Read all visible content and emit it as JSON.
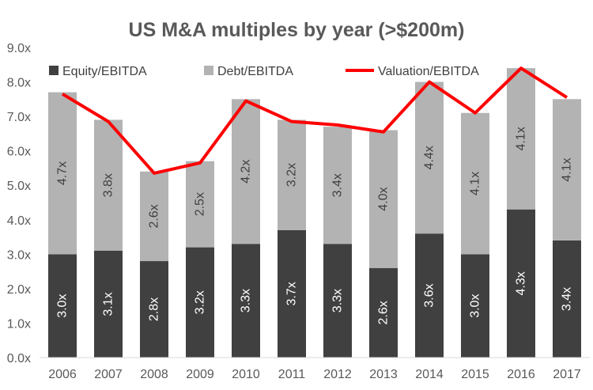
{
  "chart_data": {
    "type": "bar",
    "title": "US M&A multiples by year (>$200m)",
    "categories": [
      "2006",
      "2007",
      "2008",
      "2009",
      "2010",
      "2011",
      "2012",
      "2013",
      "2014",
      "2015",
      "2016",
      "2017"
    ],
    "series": [
      {
        "name": "Equity/EBITDA",
        "type": "bar",
        "color": "#404040",
        "values": [
          3.0,
          3.1,
          2.8,
          3.2,
          3.3,
          3.7,
          3.3,
          2.6,
          3.6,
          3.0,
          4.3,
          3.4
        ],
        "labels": [
          "3.0x",
          "3.1x",
          "2.8x",
          "3.2x",
          "3.3x",
          "3.7x",
          "3.3x",
          "2.6x",
          "3.6x",
          "3.0x",
          "4.3x",
          "3.4x"
        ]
      },
      {
        "name": "Debt/EBITDA",
        "type": "bar",
        "color": "#b3b3b3",
        "values": [
          4.7,
          3.8,
          2.6,
          2.5,
          4.2,
          3.2,
          3.4,
          4.0,
          4.4,
          4.1,
          4.1,
          4.1
        ],
        "labels": [
          "4.7x",
          "3.8x",
          "2.6x",
          "2.5x",
          "4.2x",
          "3.2x",
          "3.4x",
          "4.0x",
          "4.4x",
          "4.1x",
          "4.1x",
          "4.1x"
        ]
      },
      {
        "name": "Valuation/EBITDA",
        "type": "line",
        "color": "#ff0000",
        "values": [
          7.65,
          6.85,
          5.35,
          5.65,
          7.45,
          6.85,
          6.75,
          6.55,
          8.0,
          7.1,
          8.4,
          7.55
        ]
      }
    ],
    "y_ticks": [
      "0.0x",
      "1.0x",
      "2.0x",
      "3.0x",
      "4.0x",
      "5.0x",
      "6.0x",
      "7.0x",
      "8.0x",
      "9.0x"
    ],
    "ylim": [
      0,
      9
    ],
    "stacked": true,
    "grid": false,
    "legend_position": "top"
  }
}
